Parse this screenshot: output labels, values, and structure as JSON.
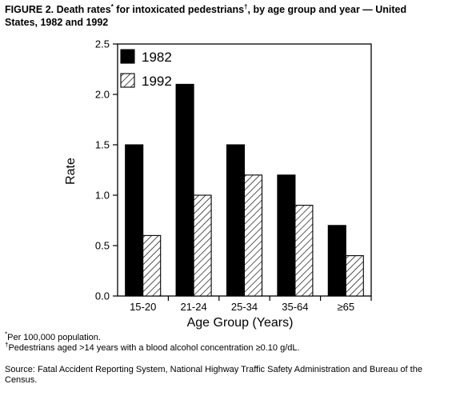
{
  "title": {
    "text": "FIGURE 2. Death rates",
    "mark1": "*",
    "middle": " for intoxicated pedestrians",
    "mark2": "†",
    "rest": ", by age group and year — United States, 1982 and 1992"
  },
  "chart_data": {
    "type": "bar",
    "categories": [
      "15-20",
      "21-24",
      "25-34",
      "35-64",
      "≥65"
    ],
    "series": [
      {
        "name": "1982",
        "values": [
          1.5,
          2.1,
          1.5,
          1.2,
          0.7
        ],
        "fill": "#000000"
      },
      {
        "name": "1992",
        "values": [
          0.6,
          1.0,
          1.2,
          0.9,
          0.4
        ],
        "fill": "hatched"
      }
    ],
    "xlabel": "Age Group (Years)",
    "ylabel": "Rate",
    "ylim": [
      0,
      2.5
    ],
    "yticks": [
      "0.0",
      "0.5",
      "1.0",
      "1.5",
      "2.0",
      "2.5"
    ],
    "grid": false,
    "legend": "top-left inside plot"
  },
  "footnotes": [
    {
      "mark": "*",
      "text": "Per 100,000 population."
    },
    {
      "mark": "†",
      "text": "Pedestrians aged >14 years with a blood alcohol concentration ≥0.10 g/dL."
    }
  ],
  "source": "Source: Fatal Accident Reporting System, National Highway Traffic Safety Administration and Bureau of the Census."
}
